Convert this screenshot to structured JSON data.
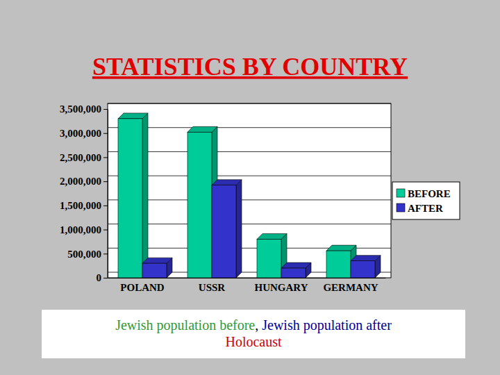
{
  "chart_data": {
    "type": "bar",
    "title": "STATISTICS BY COUNTRY",
    "categories": [
      "POLAND",
      "USSR",
      "HUNGARY",
      "GERMANY"
    ],
    "series": [
      {
        "name": "BEFORE",
        "color": "#00cc99",
        "values": [
          3300000,
          3020000,
          800000,
          560000
        ]
      },
      {
        "name": "AFTER",
        "color": "#3333cc",
        "values": [
          300000,
          1920000,
          200000,
          350000
        ]
      }
    ],
    "ylim": [
      0,
      3500000
    ],
    "yticks": [
      0,
      {
        "value": 500000,
        "label": "500,000"
      },
      {
        "value": 1000000,
        "label": "1,000,000"
      },
      {
        "value": 1500000,
        "label": "1,500,000"
      },
      {
        "value": 2000000,
        "label": "2,000,000"
      },
      {
        "value": 2500000,
        "label": "2,500,000"
      },
      {
        "value": 3000000,
        "label": "3,000,000"
      },
      {
        "value": 3500000,
        "label": "3,500,000"
      }
    ],
    "grid": true,
    "legend": "right",
    "caption": [
      "Jewish population before",
      ",",
      "Jewish population after",
      "Holocaust"
    ]
  }
}
